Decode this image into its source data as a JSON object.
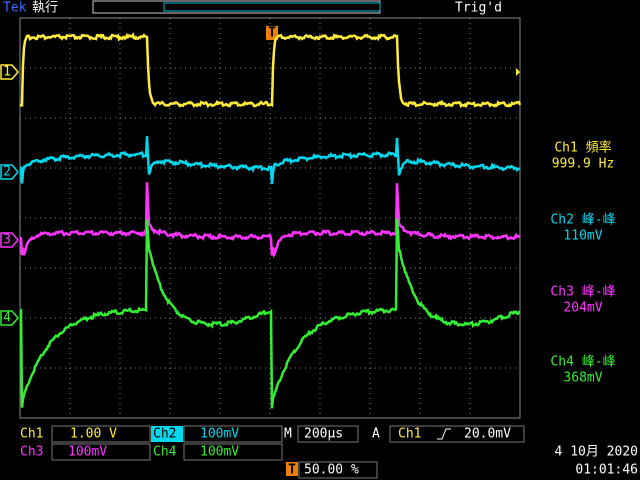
{
  "header": {
    "brand": "Tek",
    "state": "執行",
    "trigger_status": "Trig'd"
  },
  "trigger_marker": "T",
  "channel_markers": [
    "1",
    "2",
    "3",
    "4"
  ],
  "measurements": [
    {
      "label": "Ch1 頻率",
      "value": "999.9 Hz"
    },
    {
      "label": "Ch2 峰-峰",
      "value": "110mV"
    },
    {
      "label": "Ch3 峰-峰",
      "value": "204mV"
    },
    {
      "label": "Ch4 峰-峰",
      "value": "368mV"
    }
  ],
  "readouts": {
    "ch1": {
      "label": "Ch1",
      "scale": "1.00 V"
    },
    "ch2": {
      "label": "Ch2",
      "scale": "100mV"
    },
    "ch3": {
      "label": "Ch3",
      "scale": "100mV"
    },
    "ch4": {
      "label": "Ch4",
      "scale": "100mV"
    },
    "timebase": {
      "label": "M",
      "value": "200µs"
    },
    "trigger": {
      "mode": "A",
      "source": "Ch1",
      "level": "20.0mV"
    },
    "position": {
      "marker": "T",
      "value": "50.00 %"
    }
  },
  "date": "4 10月 2020",
  "time": "01:01:46"
}
